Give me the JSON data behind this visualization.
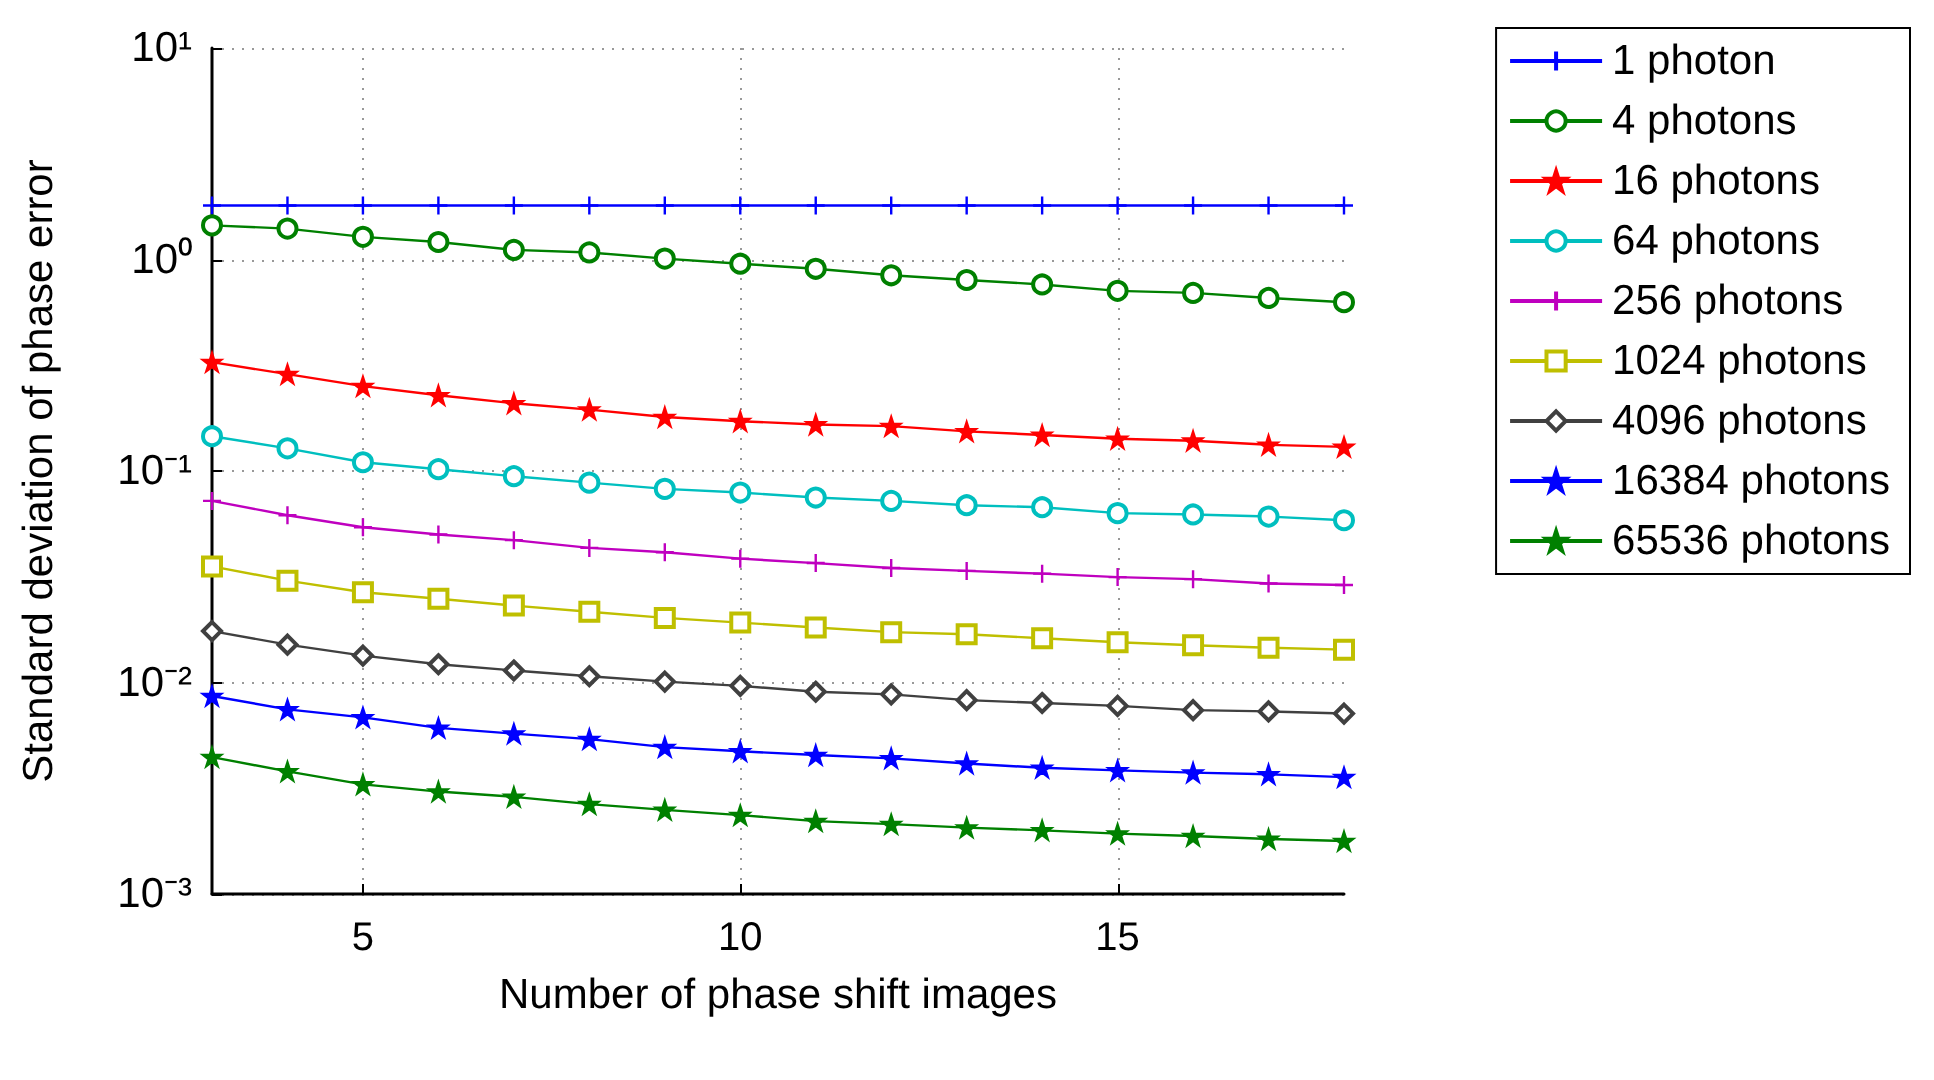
{
  "chart_data": {
    "type": "line",
    "xlabel": "Number of phase shift images",
    "ylabel": "Standard deviation of phase error",
    "x": [
      3,
      4,
      5,
      6,
      7,
      8,
      9,
      10,
      11,
      12,
      13,
      14,
      15,
      16,
      17,
      18
    ],
    "xlim": [
      3,
      18
    ],
    "xticks": [
      5,
      10,
      15
    ],
    "log": "y",
    "ylim": [
      0.001,
      10
    ],
    "yticks": [
      {
        "value": 0.001,
        "label": "10⁻³"
      },
      {
        "value": 0.01,
        "label": "10⁻²"
      },
      {
        "value": 0.1,
        "label": "10⁻¹"
      },
      {
        "value": 1,
        "label": "10⁰"
      },
      {
        "value": 10,
        "label": "10¹"
      }
    ],
    "grid": true,
    "legend": "top right",
    "line_style": "solid",
    "series": [
      {
        "name": "1 photon",
        "color": "#0000ff",
        "marker": "cross",
        "values": [
          1.8,
          1.8,
          1.8,
          1.8,
          1.8,
          1.8,
          1.8,
          1.8,
          1.8,
          1.8,
          1.8,
          1.8,
          1.8,
          1.8,
          1.8,
          1.8
        ]
      },
      {
        "name": "4 photons",
        "color": "#008000",
        "marker": "circle",
        "values": [
          1.45,
          1.4,
          1.28,
          1.21,
          1.11,
          1.08,
          1.01,
          0.955,
          0.904,
          0.842,
          0.8,
          0.762,
          0.711,
          0.695,
          0.658,
          0.628
        ]
      },
      {
        "name": "16 photons",
        "color": "#ff0000",
        "marker": "star",
        "values": [
          0.327,
          0.287,
          0.252,
          0.228,
          0.209,
          0.195,
          0.18,
          0.172,
          0.166,
          0.163,
          0.154,
          0.148,
          0.142,
          0.139,
          0.133,
          0.13
        ]
      },
      {
        "name": "64 photons",
        "color": "#00bfbf",
        "marker": "circle",
        "values": [
          0.146,
          0.128,
          0.11,
          0.102,
          0.0945,
          0.0881,
          0.0823,
          0.0791,
          0.0749,
          0.0722,
          0.0689,
          0.0674,
          0.0632,
          0.0623,
          0.0609,
          0.0585
        ]
      },
      {
        "name": "256 photons",
        "color": "#bf00bf",
        "marker": "cross",
        "values": [
          0.0722,
          0.0618,
          0.0542,
          0.0501,
          0.0471,
          0.0433,
          0.0413,
          0.0385,
          0.0367,
          0.0348,
          0.0337,
          0.0327,
          0.0315,
          0.0308,
          0.0294,
          0.0289
        ]
      },
      {
        "name": "1024 photons",
        "color": "#bfbf00",
        "marker": "square",
        "values": [
          0.0354,
          0.0303,
          0.0267,
          0.0249,
          0.0231,
          0.0216,
          0.0202,
          0.0192,
          0.0182,
          0.0173,
          0.0169,
          0.0162,
          0.0155,
          0.015,
          0.0146,
          0.0143
        ]
      },
      {
        "name": "4096 photons",
        "color": "#404040",
        "marker": "diamond",
        "values": [
          0.0175,
          0.0151,
          0.0134,
          0.0122,
          0.0114,
          0.0107,
          0.0101,
          0.00964,
          0.00904,
          0.00879,
          0.00825,
          0.008,
          0.00775,
          0.0074,
          0.0073,
          0.00713
        ]
      },
      {
        "name": "16384 photons",
        "color": "#0000ff",
        "marker": "star",
        "values": [
          0.00863,
          0.00746,
          0.00684,
          0.0061,
          0.00573,
          0.0054,
          0.00495,
          0.00473,
          0.00454,
          0.00438,
          0.00414,
          0.00395,
          0.00384,
          0.00375,
          0.00368,
          0.00357
        ]
      },
      {
        "name": "65536 photons",
        "color": "#008000",
        "marker": "star",
        "values": [
          0.00444,
          0.0038,
          0.0033,
          0.00305,
          0.00288,
          0.00266,
          0.0025,
          0.00236,
          0.00221,
          0.00214,
          0.00206,
          0.002,
          0.00193,
          0.00188,
          0.00182,
          0.00178
        ]
      }
    ]
  }
}
